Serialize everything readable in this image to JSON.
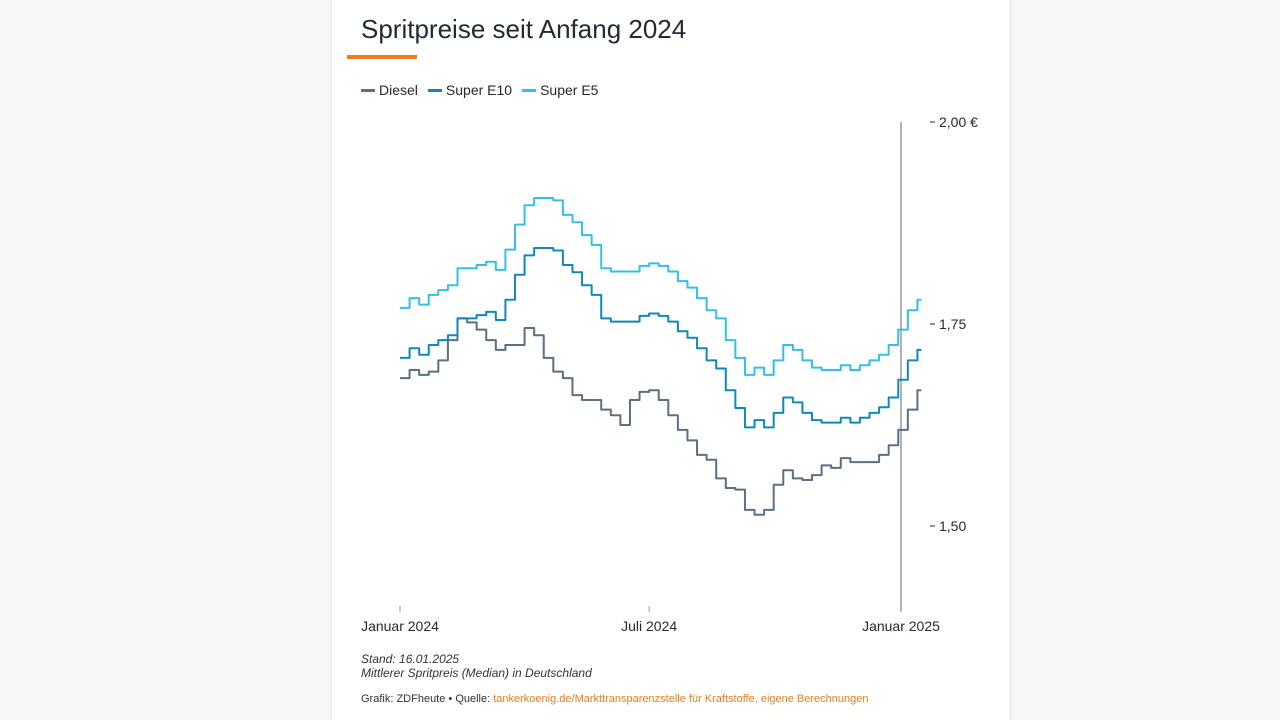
{
  "chart_data": {
    "type": "line",
    "title": "Spritpreise seit Anfang 2024",
    "xlabel": "",
    "ylabel": "",
    "ylim": [
      1.395,
      2.0
    ],
    "yticks": [
      {
        "value": 2.0,
        "label": "2,00 €"
      },
      {
        "value": 1.75,
        "label": "1,75"
      },
      {
        "value": 1.5,
        "label": "1,50"
      }
    ],
    "xticks": [
      {
        "date": "2024-01-01",
        "label": "Januar 2024"
      },
      {
        "date": "2024-07-01",
        "label": "Juli 2024"
      },
      {
        "date": "2025-01-01",
        "label": "Januar 2025"
      }
    ],
    "marker_line_date": "2025-01-01",
    "legend_position": "top-left",
    "grid": false,
    "x": [
      "2024-01-01",
      "2024-01-08",
      "2024-01-15",
      "2024-01-22",
      "2024-01-29",
      "2024-02-05",
      "2024-02-12",
      "2024-02-19",
      "2024-02-26",
      "2024-03-04",
      "2024-03-11",
      "2024-03-18",
      "2024-03-25",
      "2024-04-01",
      "2024-04-08",
      "2024-04-15",
      "2024-04-22",
      "2024-04-29",
      "2024-05-06",
      "2024-05-13",
      "2024-05-20",
      "2024-05-27",
      "2024-06-03",
      "2024-06-10",
      "2024-06-17",
      "2024-06-24",
      "2024-07-01",
      "2024-07-08",
      "2024-07-15",
      "2024-07-22",
      "2024-07-29",
      "2024-08-05",
      "2024-08-12",
      "2024-08-19",
      "2024-08-26",
      "2024-09-02",
      "2024-09-09",
      "2024-09-16",
      "2024-09-23",
      "2024-09-30",
      "2024-10-07",
      "2024-10-14",
      "2024-10-21",
      "2024-10-28",
      "2024-11-04",
      "2024-11-11",
      "2024-11-18",
      "2024-11-25",
      "2024-12-02",
      "2024-12-09",
      "2024-12-16",
      "2024-12-23",
      "2024-12-30",
      "2025-01-06",
      "2025-01-13"
    ],
    "series": [
      {
        "name": "Diesel",
        "color": "#5b7083",
        "values": [
          1.683,
          1.693,
          1.687,
          1.691,
          1.705,
          1.73,
          1.757,
          1.752,
          1.743,
          1.73,
          1.718,
          1.724,
          1.724,
          1.745,
          1.736,
          1.708,
          1.691,
          1.683,
          1.662,
          1.656,
          1.656,
          1.644,
          1.637,
          1.625,
          1.656,
          1.666,
          1.668,
          1.656,
          1.637,
          1.619,
          1.606,
          1.588,
          1.582,
          1.559,
          1.547,
          1.545,
          1.52,
          1.514,
          1.52,
          1.551,
          1.569,
          1.559,
          1.557,
          1.563,
          1.575,
          1.572,
          1.584,
          1.579,
          1.579,
          1.579,
          1.588,
          1.6,
          1.619,
          1.644,
          1.668
        ]
      },
      {
        "name": "Super E10",
        "color": "#1189b8",
        "values": [
          1.708,
          1.72,
          1.712,
          1.724,
          1.73,
          1.736,
          1.757,
          1.757,
          1.761,
          1.765,
          1.755,
          1.78,
          1.811,
          1.835,
          1.844,
          1.844,
          1.841,
          1.823,
          1.814,
          1.798,
          1.786,
          1.757,
          1.753,
          1.753,
          1.753,
          1.76,
          1.763,
          1.76,
          1.753,
          1.741,
          1.733,
          1.72,
          1.705,
          1.695,
          1.668,
          1.646,
          1.622,
          1.631,
          1.622,
          1.64,
          1.659,
          1.653,
          1.64,
          1.631,
          1.628,
          1.628,
          1.634,
          1.628,
          1.634,
          1.64,
          1.647,
          1.659,
          1.681,
          1.705,
          1.718
        ]
      },
      {
        "name": "Super E5",
        "color": "#33c0e8",
        "values": [
          1.77,
          1.782,
          1.774,
          1.786,
          1.792,
          1.798,
          1.819,
          1.819,
          1.823,
          1.827,
          1.817,
          1.842,
          1.873,
          1.897,
          1.906,
          1.906,
          1.903,
          1.885,
          1.876,
          1.86,
          1.848,
          1.819,
          1.815,
          1.815,
          1.815,
          1.822,
          1.825,
          1.822,
          1.815,
          1.803,
          1.795,
          1.782,
          1.767,
          1.757,
          1.73,
          1.708,
          1.687,
          1.696,
          1.687,
          1.705,
          1.724,
          1.718,
          1.705,
          1.696,
          1.693,
          1.693,
          1.699,
          1.693,
          1.699,
          1.705,
          1.712,
          1.724,
          1.743,
          1.767,
          1.78
        ]
      }
    ]
  },
  "notes": {
    "stand": "Stand: 16.01.2025",
    "description": "Mittlerer Spritpreis (Median) in Deutschland",
    "credit_prefix": "Grafik: ZDFheute • Quelle: ",
    "source": "tankerkoenig.de/Markttransparenzstelle für Kraftstoffe, eigene Berechnungen"
  },
  "colors": {
    "accent": "#f07d19",
    "title": "#222a35"
  }
}
